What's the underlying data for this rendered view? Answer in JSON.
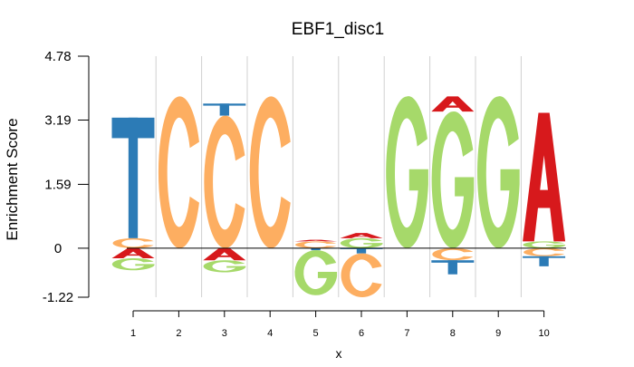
{
  "chart_data": {
    "type": "sequence-logo",
    "title": "EBF1_disc1",
    "xlabel": "x",
    "ylabel": "Enrichment Score",
    "ylim": [
      -1.22,
      4.78
    ],
    "yticks": [
      {
        "value": 4.78,
        "label": "4.78"
      },
      {
        "value": 3.19,
        "label": "3.19"
      },
      {
        "value": 1.59,
        "label": "1.59"
      },
      {
        "value": 0,
        "label": "0"
      },
      {
        "value": -1.22,
        "label": "-1.22"
      }
    ],
    "xticks": [
      "1",
      "2",
      "3",
      "4",
      "5",
      "6",
      "7",
      "8",
      "9",
      "10"
    ],
    "grid": "vertical",
    "colors": {
      "A": "#d7191c",
      "C": "#fdae61",
      "G": "#a6d96a",
      "T": "#2c7bb6"
    },
    "positions": [
      {
        "pos": 1,
        "positive": [
          {
            "letter": "C",
            "height": 0.25
          },
          {
            "letter": "T",
            "height": 3.0
          }
        ],
        "negative": [
          {
            "letter": "A",
            "height": 0.25
          },
          {
            "letter": "G",
            "height": 0.3
          }
        ]
      },
      {
        "pos": 2,
        "positive": [
          {
            "letter": "C",
            "height": 3.78
          }
        ],
        "negative": []
      },
      {
        "pos": 3,
        "positive": [
          {
            "letter": "C",
            "height": 3.3
          },
          {
            "letter": "T",
            "height": 0.3
          }
        ],
        "negative": [
          {
            "letter": "A",
            "height": 0.3
          },
          {
            "letter": "G",
            "height": 0.3
          }
        ]
      },
      {
        "pos": 4,
        "positive": [
          {
            "letter": "C",
            "height": 3.78
          }
        ],
        "negative": []
      },
      {
        "pos": 5,
        "positive": [
          {
            "letter": "C",
            "height": 0.17
          },
          {
            "letter": "A",
            "height": 0.04
          }
        ],
        "negative": [
          {
            "letter": "T",
            "height": 0.05
          },
          {
            "letter": "G",
            "height": 1.12
          }
        ]
      },
      {
        "pos": 6,
        "positive": [
          {
            "letter": "G",
            "height": 0.25
          },
          {
            "letter": "A",
            "height": 0.13
          }
        ],
        "negative": [
          {
            "letter": "T",
            "height": 0.13
          },
          {
            "letter": "C",
            "height": 1.09
          }
        ]
      },
      {
        "pos": 7,
        "positive": [
          {
            "letter": "G",
            "height": 3.78
          }
        ],
        "negative": []
      },
      {
        "pos": 8,
        "positive": [
          {
            "letter": "G",
            "height": 3.4
          },
          {
            "letter": "A",
            "height": 0.38
          }
        ],
        "negative": [
          {
            "letter": "C",
            "height": 0.3
          },
          {
            "letter": "T",
            "height": 0.35
          }
        ]
      },
      {
        "pos": 9,
        "positive": [
          {
            "letter": "G",
            "height": 3.78
          }
        ],
        "negative": []
      },
      {
        "pos": 10,
        "positive": [
          {
            "letter": "G",
            "height": 0.17
          },
          {
            "letter": "A",
            "height": 3.2
          }
        ],
        "negative": [
          {
            "letter": "C",
            "height": 0.2
          },
          {
            "letter": "T",
            "height": 0.25
          }
        ]
      }
    ]
  }
}
